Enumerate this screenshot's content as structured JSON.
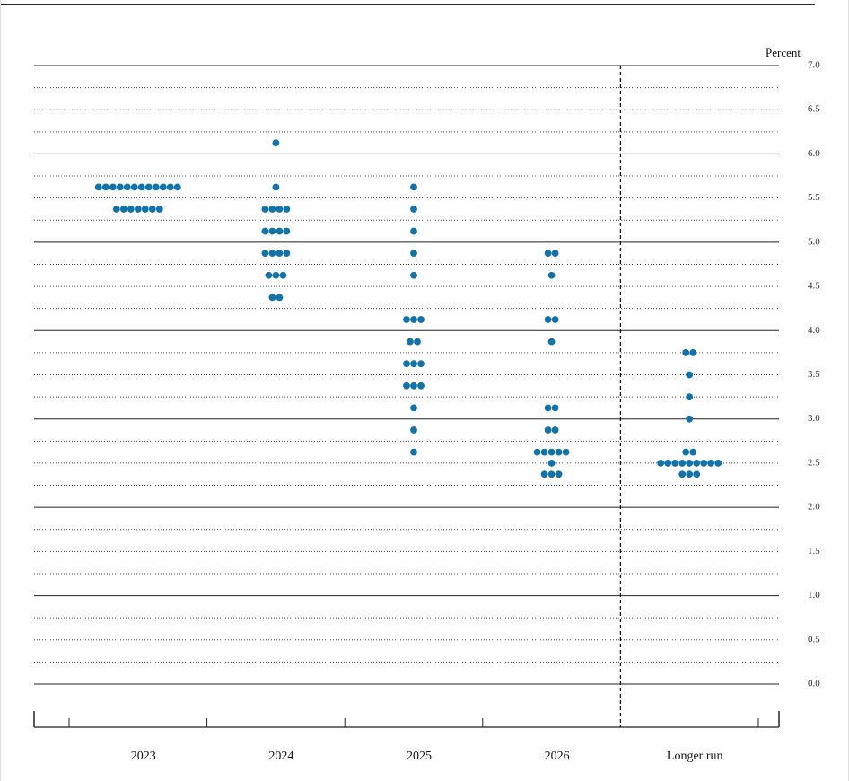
{
  "chart_data": {
    "type": "dot",
    "y_label": "Percent",
    "categories": [
      "2023",
      "2024",
      "2025",
      "2026",
      "Longer run"
    ],
    "color": "#1273a8",
    "values": [
      [
        5.625,
        5.625,
        5.625,
        5.625,
        5.625,
        5.625,
        5.625,
        5.625,
        5.625,
        5.625,
        5.625,
        5.625,
        5.375,
        5.375,
        5.375,
        5.375,
        5.375,
        5.375,
        5.375
      ],
      [
        6.125,
        5.625,
        5.375,
        5.375,
        5.375,
        5.375,
        5.125,
        5.125,
        5.125,
        5.125,
        4.875,
        4.875,
        4.875,
        4.875,
        4.625,
        4.625,
        4.625,
        4.375,
        4.375
      ],
      [
        5.625,
        5.375,
        5.125,
        4.875,
        4.625,
        4.125,
        4.125,
        4.125,
        3.875,
        3.875,
        3.625,
        3.625,
        3.625,
        3.375,
        3.375,
        3.375,
        3.125,
        2.875,
        2.625
      ],
      [
        4.875,
        4.875,
        4.625,
        4.125,
        4.125,
        3.875,
        3.125,
        3.125,
        2.875,
        2.875,
        2.625,
        2.625,
        2.625,
        2.625,
        2.625,
        2.5,
        2.375,
        2.375,
        2.375
      ],
      [
        3.75,
        3.75,
        3.5,
        3.25,
        3.0,
        2.625,
        2.625,
        2.5,
        2.5,
        2.5,
        2.5,
        2.5,
        2.5,
        2.5,
        2.5,
        2.5,
        2.375,
        2.375,
        2.375
      ]
    ],
    "ylim": [
      0,
      7
    ],
    "yticks": [
      {
        "value": 0,
        "label": "0.0"
      },
      0.5,
      {
        "value": 1,
        "label": "1.0"
      },
      1.5,
      {
        "value": 2,
        "label": "2.0"
      },
      2.5,
      {
        "value": 3,
        "label": "3.0"
      },
      3.5,
      {
        "value": 4,
        "label": "4.0"
      },
      4.5,
      {
        "value": 5,
        "label": "5.0"
      },
      5.5,
      {
        "value": 6,
        "label": "6.0"
      },
      6.5,
      {
        "value": 7,
        "label": "7.0"
      }
    ],
    "minor_yticks": [
      0.25,
      0.75,
      1.25,
      1.75,
      2.25,
      2.75,
      3.25,
      3.75,
      4.25,
      4.75,
      5.25,
      5.75,
      6.25,
      6.75
    ],
    "grid": true
  }
}
